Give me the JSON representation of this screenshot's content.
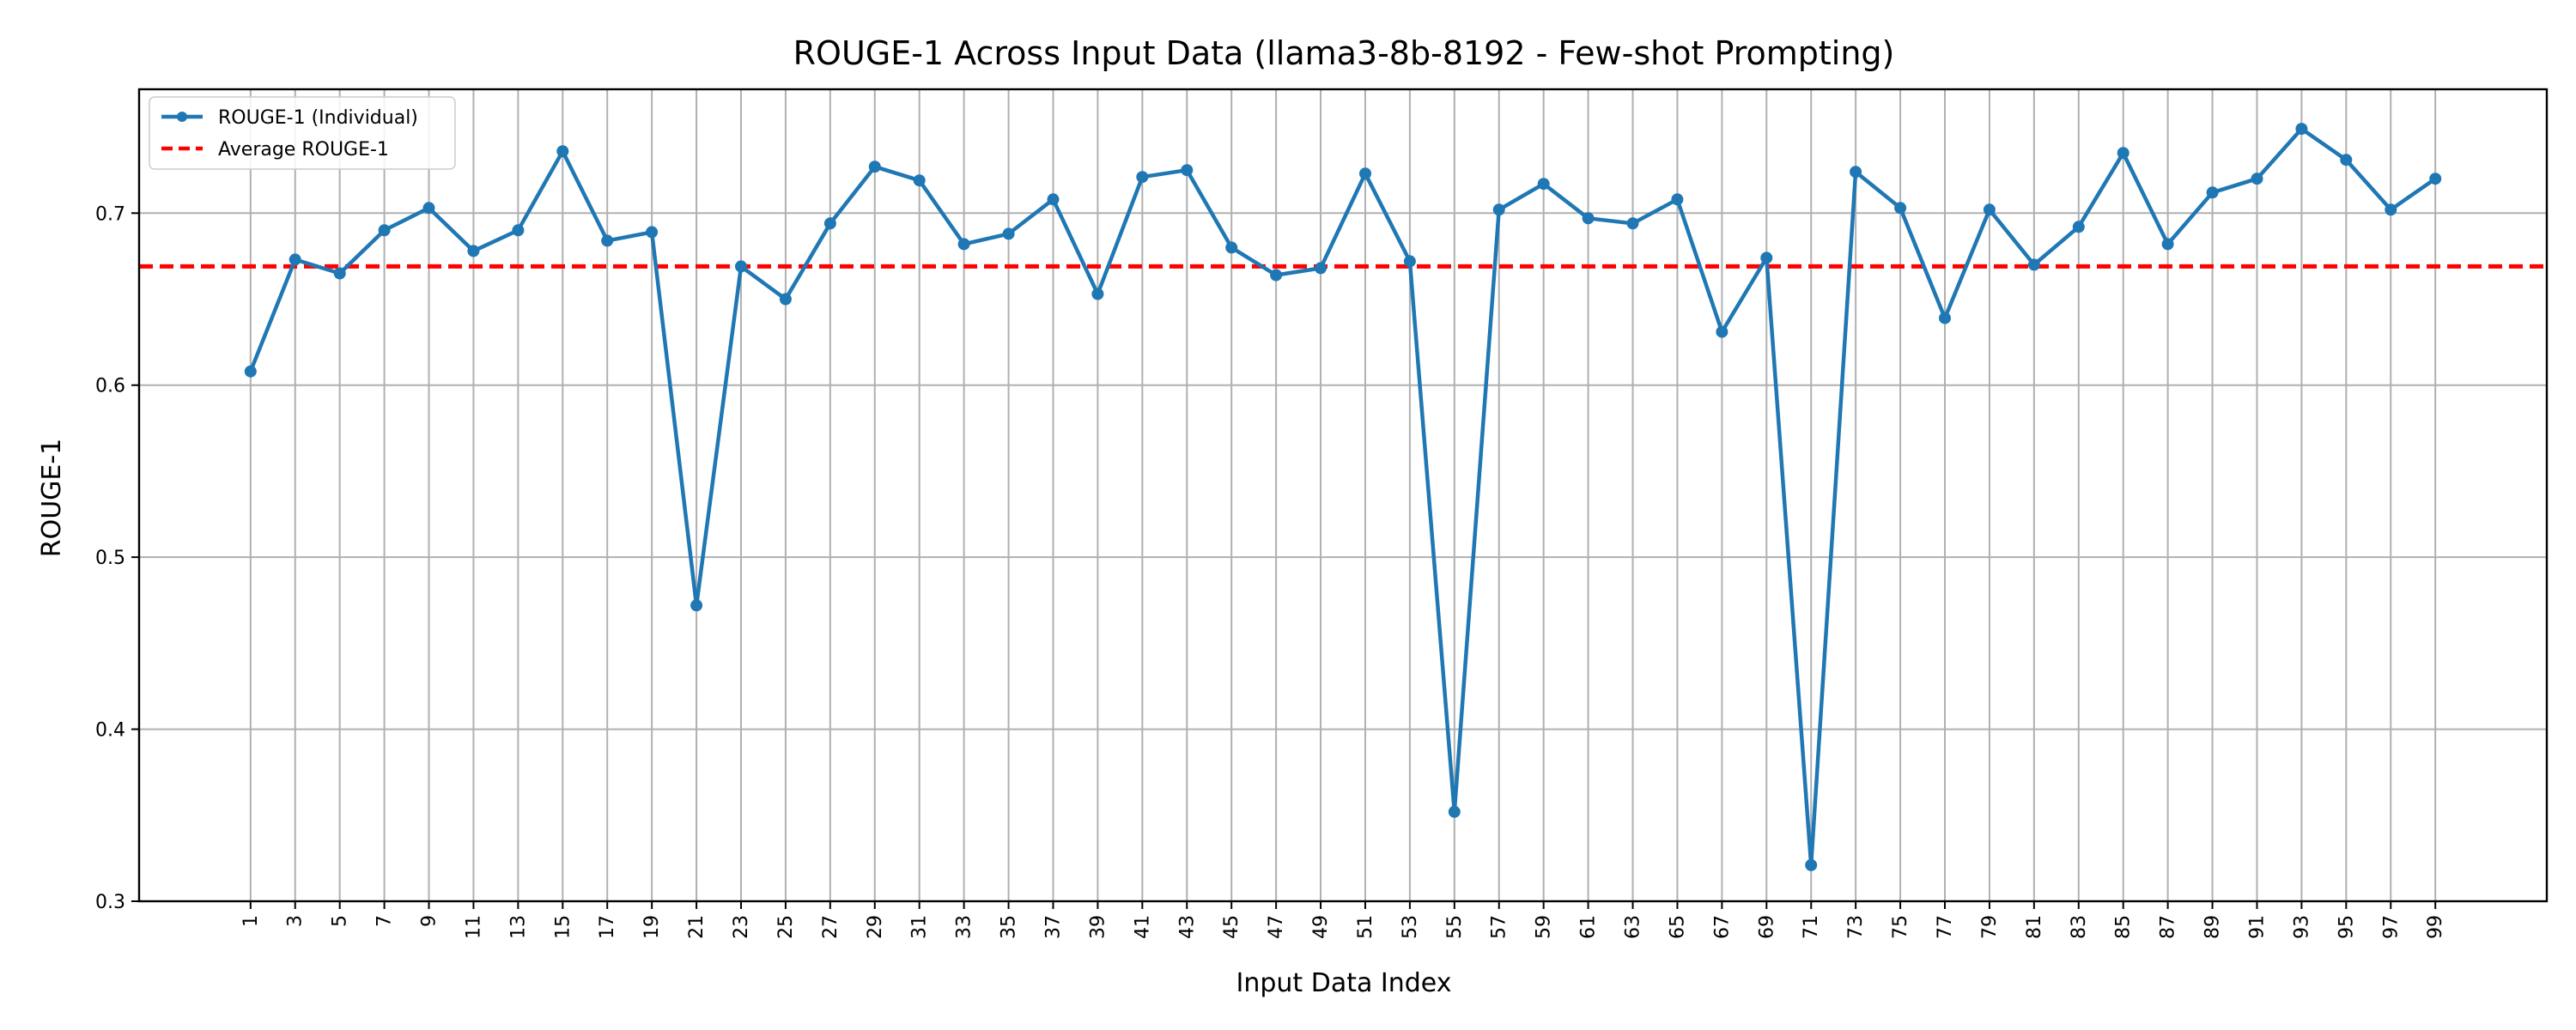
{
  "chart_data": {
    "type": "line",
    "title": "ROUGE-1 Across Input Data (llama3-8b-8192 - Few-shot Prompting)",
    "xlabel": "Input Data Index",
    "ylabel": "ROUGE-1",
    "x": [
      1,
      3,
      5,
      7,
      9,
      11,
      13,
      15,
      17,
      19,
      21,
      23,
      25,
      27,
      29,
      31,
      33,
      35,
      37,
      39,
      41,
      43,
      45,
      47,
      49,
      51,
      53,
      55,
      57,
      59,
      61,
      63,
      65,
      67,
      69,
      71,
      73,
      75,
      77,
      79,
      81,
      83,
      85,
      87,
      89,
      91,
      93,
      95,
      97,
      99
    ],
    "series": [
      {
        "name": "ROUGE-1 (Individual)",
        "color": "#1f77b4",
        "values": [
          0.608,
          0.673,
          0.665,
          0.69,
          0.703,
          0.678,
          0.69,
          0.736,
          0.684,
          0.689,
          0.472,
          0.669,
          0.65,
          0.694,
          0.727,
          0.719,
          0.682,
          0.688,
          0.708,
          0.653,
          0.721,
          0.725,
          0.68,
          0.664,
          0.668,
          0.723,
          0.672,
          0.352,
          0.702,
          0.717,
          0.697,
          0.694,
          0.708,
          0.631,
          0.674,
          0.321,
          0.724,
          0.703,
          0.639,
          0.702,
          0.67,
          0.692,
          0.735,
          0.682,
          0.712,
          0.72,
          0.749,
          0.731,
          0.702,
          0.72
        ]
      }
    ],
    "average": {
      "name": "Average ROUGE-1",
      "value": 0.669,
      "color": "#ff0000"
    },
    "xticks": [
      "1",
      "3",
      "5",
      "7",
      "9",
      "11",
      "13",
      "15",
      "17",
      "19",
      "21",
      "23",
      "25",
      "27",
      "29",
      "31",
      "33",
      "35",
      "37",
      "39",
      "41",
      "43",
      "45",
      "47",
      "49",
      "51",
      "53",
      "55",
      "57",
      "59",
      "61",
      "63",
      "65",
      "67",
      "69",
      "71",
      "73",
      "75",
      "77",
      "79",
      "81",
      "83",
      "85",
      "87",
      "89",
      "91",
      "93",
      "95",
      "97",
      "99"
    ],
    "yticks": [
      "0.3",
      "0.4",
      "0.5",
      "0.6",
      "0.7"
    ],
    "xlim": [
      -4,
      104
    ],
    "ylim": [
      0.3,
      0.772
    ],
    "grid": true,
    "legend_position": "top-left"
  }
}
